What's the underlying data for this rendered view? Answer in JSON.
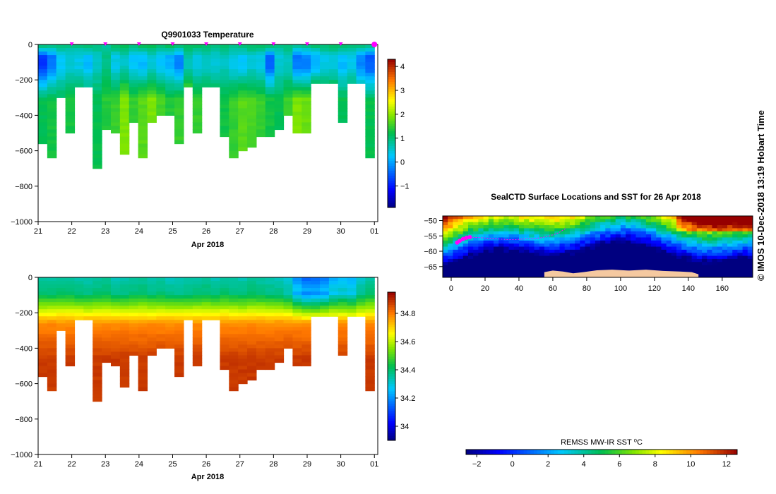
{
  "credit": "© IMOS 10-Dec-2018 13:19 Hobart Time",
  "chart_data": [
    {
      "id": "temperature",
      "type": "heatmap",
      "title": "Q9901033  Temperature",
      "xlabel": "Apr 2018",
      "ylabel": "",
      "x_ticks": [
        "21",
        "22",
        "23",
        "24",
        "25",
        "26",
        "27",
        "28",
        "29",
        "30",
        "01"
      ],
      "x_range": [
        21,
        31.1
      ],
      "ylim": [
        -1000,
        0
      ],
      "y_ticks": [
        0,
        -200,
        -400,
        -600,
        -800,
        -1000
      ],
      "colorbar": {
        "min": -1.9,
        "max": 4.3,
        "ticks": [
          -1,
          0,
          1,
          2,
          3,
          4
        ]
      },
      "surface_markers": [
        22,
        23,
        24,
        25,
        26,
        27,
        28,
        29,
        30,
        31.0
      ],
      "bottom_depths": [
        -550,
        -640,
        -300,
        -495,
        -240,
        -240,
        -690,
        -480,
        -500,
        -610,
        -425,
        -630,
        -430,
        -400,
        -400,
        -545,
        -240,
        -490,
        -240,
        -240,
        -510,
        -630,
        -600,
        -565,
        -510,
        -520,
        -480,
        -400,
        -500,
        -490,
        -220,
        -220,
        -220,
        -430,
        -220,
        -220,
        -630
      ],
      "profiles": [
        {
          "t0": 1.0,
          "tmin": -0.8,
          "tdeep": 1.2
        },
        {
          "t0": 0.9,
          "tmin": -0.3,
          "tdeep": 1.3
        },
        {
          "t0": 0.9,
          "tmin": 0.3,
          "tdeep": 1.2
        },
        {
          "t0": 0.9,
          "tmin": 0.5,
          "tdeep": 1.3
        },
        {
          "t0": 0.9,
          "tmin": 0.4,
          "tdeep": 1.4
        },
        {
          "t0": 1.0,
          "tmin": 0.2,
          "tdeep": 1.3
        },
        {
          "t0": 0.9,
          "tmin": 0.6,
          "tdeep": 1.2
        },
        {
          "t0": 0.8,
          "tmin": 0.9,
          "tdeep": 1.4
        },
        {
          "t0": 1.1,
          "tmin": 0.4,
          "tdeep": 1.5
        },
        {
          "t0": 1.2,
          "tmin": 0.6,
          "tdeep": 1.9
        },
        {
          "t0": 1.0,
          "tmin": 0.3,
          "tdeep": 1.5
        },
        {
          "t0": 1.1,
          "tmin": 0.2,
          "tdeep": 1.7
        },
        {
          "t0": 1.2,
          "tmin": 0.5,
          "tdeep": 1.9
        },
        {
          "t0": 1.0,
          "tmin": 0.3,
          "tdeep": 1.6
        },
        {
          "t0": 1.1,
          "tmin": 0.1,
          "tdeep": 1.4
        },
        {
          "t0": 0.9,
          "tmin": -0.2,
          "tdeep": 1.5
        },
        {
          "t0": 1.1,
          "tmin": 0.7,
          "tdeep": 1.9
        },
        {
          "t0": 1.1,
          "tmin": 0.4,
          "tdeep": 1.5
        },
        {
          "t0": 1.0,
          "tmin": 0.6,
          "tdeep": 1.4
        },
        {
          "t0": 0.9,
          "tmin": 0.5,
          "tdeep": 1.4
        },
        {
          "t0": 1.0,
          "tmin": 0.6,
          "tdeep": 1.3
        },
        {
          "t0": 0.9,
          "tmin": 0.4,
          "tdeep": 1.5
        },
        {
          "t0": 1.0,
          "tmin": 0.3,
          "tdeep": 1.7
        },
        {
          "t0": 1.1,
          "tmin": 0.5,
          "tdeep": 1.6
        },
        {
          "t0": 1.0,
          "tmin": 0.4,
          "tdeep": 1.5
        },
        {
          "t0": 1.0,
          "tmin": -0.4,
          "tdeep": 1.3
        },
        {
          "t0": 0.9,
          "tmin": 0.5,
          "tdeep": 1.2
        },
        {
          "t0": 1.0,
          "tmin": 0.6,
          "tdeep": 1.5
        },
        {
          "t0": 0.8,
          "tmin": -0.3,
          "tdeep": 1.9
        },
        {
          "t0": 0.9,
          "tmin": -0.2,
          "tdeep": 1.8
        },
        {
          "t0": 1.0,
          "tmin": 0.1,
          "tdeep": 2.1
        },
        {
          "t0": 1.0,
          "tmin": 0.4,
          "tdeep": 1.7
        },
        {
          "t0": 1.1,
          "tmin": 0.5,
          "tdeep": 1.6
        },
        {
          "t0": 1.0,
          "tmin": 0.2,
          "tdeep": 1.2
        },
        {
          "t0": 1.0,
          "tmin": 0.4,
          "tdeep": 1.4
        },
        {
          "t0": 1.0,
          "tmin": -0.2,
          "tdeep": 1.3
        },
        {
          "t0": 0.9,
          "tmin": -0.5,
          "tdeep": 1.2
        }
      ]
    },
    {
      "id": "salinity",
      "type": "heatmap",
      "title": "",
      "xlabel": "Apr 2018",
      "ylabel": "",
      "x_ticks": [
        "21",
        "22",
        "23",
        "24",
        "25",
        "26",
        "27",
        "28",
        "29",
        "30",
        "01"
      ],
      "x_range": [
        21,
        31.1
      ],
      "ylim": [
        -1000,
        0
      ],
      "y_ticks": [
        0,
        -200,
        -400,
        -600,
        -800,
        -1000
      ],
      "colorbar": {
        "min": 33.9,
        "max": 34.95,
        "ticks": [
          34,
          34.2,
          34.4,
          34.6,
          34.8
        ]
      },
      "bottom_depths": [
        -550,
        -640,
        -300,
        -495,
        -240,
        -240,
        -690,
        -480,
        -500,
        -610,
        -425,
        -630,
        -430,
        -400,
        -400,
        -545,
        -240,
        -490,
        -240,
        -240,
        -510,
        -630,
        -600,
        -565,
        -510,
        -520,
        -480,
        -400,
        -500,
        -490,
        -220,
        -220,
        -220,
        -430,
        -220,
        -220,
        -630
      ],
      "surface_salinity": [
        34.36,
        34.35,
        34.36,
        34.36,
        34.35,
        34.34,
        34.36,
        34.36,
        34.33,
        34.34,
        34.35,
        34.36,
        34.34,
        34.35,
        34.33,
        34.33,
        34.34,
        34.35,
        34.36,
        34.34,
        34.36,
        34.35,
        34.34,
        34.36,
        34.35,
        34.34,
        34.33,
        34.3,
        34.2,
        34.14,
        34.15,
        34.18,
        34.24,
        34.26,
        34.24,
        34.32,
        34.35
      ]
    },
    {
      "id": "sst-map",
      "type": "heatmap",
      "title": "SealCTD Surface Locations and SST for 26 Apr 2018",
      "x_ticks": [
        0,
        20,
        40,
        60,
        80,
        100,
        120,
        140,
        160
      ],
      "x_range": [
        -5,
        178
      ],
      "y_ticks": [
        -50,
        -55,
        -60,
        -65
      ],
      "ylim": [
        -68.5,
        -48.5
      ],
      "colorbar": {
        "min": -2.6,
        "max": 12.6,
        "ticks": [
          -2,
          0,
          2,
          4,
          6,
          8,
          10,
          12
        ],
        "label": "REMSS MW-IR SST ⁰C"
      },
      "track": [
        [
          3.5,
          -57.2
        ],
        [
          5,
          -56.6
        ],
        [
          7,
          -56.0
        ],
        [
          9,
          -55.6
        ],
        [
          11,
          -55.4
        ],
        [
          14,
          -55.5
        ],
        [
          18,
          -55.6
        ],
        [
          23,
          -55.8
        ],
        [
          28,
          -56.0
        ],
        [
          33,
          -56.2
        ],
        [
          38,
          -56.2
        ],
        [
          43,
          -56.0
        ],
        [
          48,
          -55.9
        ],
        [
          53,
          -55.6
        ],
        [
          58,
          -55.0
        ],
        [
          62,
          -54.3
        ],
        [
          64,
          -53.8
        ],
        [
          66,
          -53.1
        ],
        [
          68,
          -52.5
        ]
      ]
    }
  ]
}
